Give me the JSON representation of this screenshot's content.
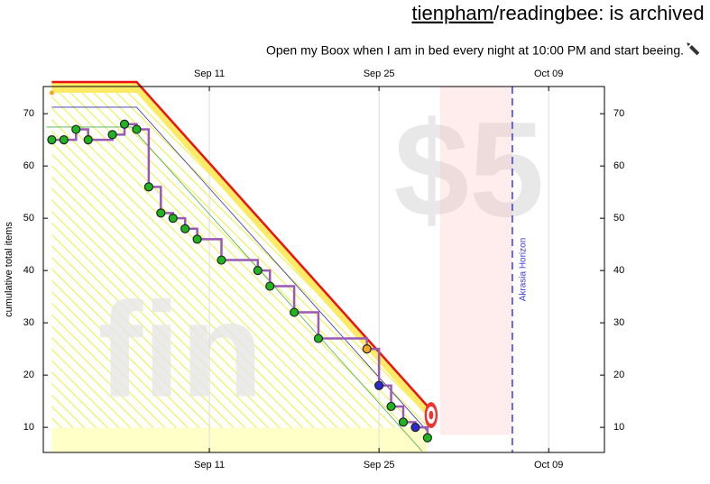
{
  "header": {
    "user": "tienpham",
    "title": "/readingbee: is archived",
    "subtitle": "Open my Boox when I am in bed every night at 10:00 PM and start beeing."
  },
  "chart_data": {
    "type": "beeminder",
    "ylabel": "cumulative total items",
    "xlim": [
      240.3,
      286.6
    ],
    "ylim": [
      5.2,
      75.2
    ],
    "xticks": [
      {
        "value": 254,
        "label": "Sep 11"
      },
      {
        "value": 268,
        "label": "Sep 25"
      },
      {
        "value": 282,
        "label": "Oct 09"
      }
    ],
    "yticks": [
      10,
      20,
      30,
      40,
      50,
      60,
      70
    ],
    "xgrid": true,
    "watermark_goal": "$5",
    "watermark_status": "fin",
    "horizon": {
      "x": 279,
      "label": "Akrasia Horizon",
      "color": "#3a3ae0"
    },
    "road": {
      "x": [
        241,
        248,
        272
      ],
      "values": [
        74,
        74,
        12
      ],
      "color": "#ee1111",
      "start": 74
    },
    "series": [
      {
        "name": "data",
        "color": "#9b59b6",
        "x": [
          241,
          242,
          243,
          244,
          246,
          247,
          248,
          249,
          250,
          251,
          252,
          253,
          255,
          258,
          259,
          261,
          263,
          267,
          268,
          269,
          270,
          271,
          272
        ],
        "values": [
          65,
          65,
          67,
          65,
          66,
          68,
          67,
          56,
          51,
          50,
          48,
          46,
          42,
          40,
          37,
          32,
          27,
          25,
          18,
          14,
          11,
          10,
          8
        ],
        "colors": [
          "#1fb51f",
          "#1fb51f",
          "#1fb51f",
          "#1fb51f",
          "#1fb51f",
          "#1fb51f",
          "#1fb51f",
          "#1fb51f",
          "#1fb51f",
          "#1fb51f",
          "#1fb51f",
          "#1fb51f",
          "#1fb51f",
          "#1fb51f",
          "#1fb51f",
          "#1fb51f",
          "#1fb51f",
          "#f5a623",
          "#2a2ad0",
          "#1fb51f",
          "#1fb51f",
          "#2a2ad0",
          "#1fb51f"
        ]
      }
    ]
  }
}
